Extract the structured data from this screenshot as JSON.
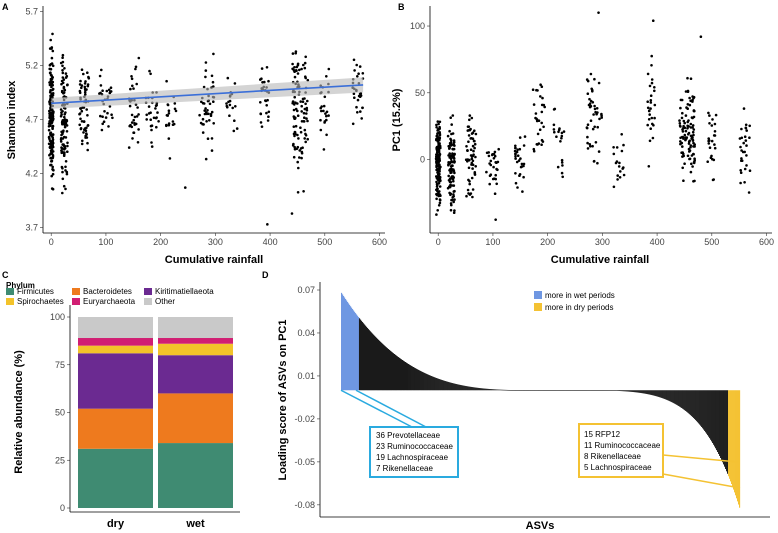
{
  "chart_data": [
    {
      "id": "A",
      "type": "scatter",
      "panel_label": "A",
      "xlabel": "Cumulative rainfall",
      "ylabel": "Shannon index",
      "xlim": [
        -15,
        610
      ],
      "ylim": [
        3.65,
        5.75
      ],
      "xticks": [
        0,
        100,
        200,
        300,
        400,
        500,
        600
      ],
      "yticks": [
        3.7,
        4.2,
        4.7,
        5.2,
        5.7
      ],
      "ytick_labels": [
        "3.7",
        "4.2",
        "4.7",
        "5.2",
        "5.7"
      ],
      "trend": {
        "x": [
          0,
          570
        ],
        "y": [
          4.85,
          5.02
        ],
        "ci_halfwidth": [
          0.05,
          0.07
        ],
        "color": "#3b6fd8"
      },
      "clusters": [
        {
          "x": 0,
          "spread": 4,
          "n": 170,
          "ymin": 3.82,
          "ymax": 5.62
        },
        {
          "x": 24,
          "spread": 6,
          "n": 110,
          "ymin": 3.85,
          "ymax": 5.55
        },
        {
          "x": 60,
          "spread": 9,
          "n": 60,
          "ymin": 4.2,
          "ymax": 5.45
        },
        {
          "x": 100,
          "spread": 12,
          "n": 30,
          "ymin": 4.3,
          "ymax": 5.35
        },
        {
          "x": 150,
          "spread": 10,
          "n": 35,
          "ymin": 4.2,
          "ymax": 5.35
        },
        {
          "x": 185,
          "spread": 12,
          "n": 30,
          "ymin": 4.25,
          "ymax": 5.35
        },
        {
          "x": 220,
          "spread": 10,
          "n": 20,
          "ymin": 4.3,
          "ymax": 5.3
        },
        {
          "x": 285,
          "spread": 14,
          "n": 45,
          "ymin": 4.15,
          "ymax": 5.45
        },
        {
          "x": 330,
          "spread": 10,
          "n": 18,
          "ymin": 4.4,
          "ymax": 5.2
        },
        {
          "x": 390,
          "spread": 8,
          "n": 30,
          "ymin": 4.5,
          "ymax": 5.35
        },
        {
          "x": 455,
          "spread": 14,
          "n": 110,
          "ymin": 3.9,
          "ymax": 5.65
        },
        {
          "x": 500,
          "spread": 8,
          "n": 25,
          "ymin": 4.3,
          "ymax": 5.45
        },
        {
          "x": 560,
          "spread": 10,
          "n": 30,
          "ymin": 4.4,
          "ymax": 5.5
        }
      ],
      "extra_points": [
        [
          395,
          3.73
        ],
        [
          245,
          4.07
        ],
        [
          440,
          3.83
        ]
      ]
    },
    {
      "id": "B",
      "type": "scatter",
      "panel_label": "B",
      "xlabel": "Cumulative rainfall",
      "ylabel": "PC1 (15.2%)",
      "xlim": [
        -15,
        610
      ],
      "ylim": [
        -55,
        115
      ],
      "xticks": [
        0,
        100,
        200,
        300,
        400,
        500,
        600
      ],
      "yticks": [
        0,
        50,
        100
      ],
      "ytick_labels": [
        "0",
        "50",
        "100"
      ],
      "clusters": [
        {
          "x": 0,
          "spread": 4,
          "n": 160,
          "ymin": -48,
          "ymax": 45
        },
        {
          "x": 24,
          "spread": 6,
          "n": 110,
          "ymin": -48,
          "ymax": 40
        },
        {
          "x": 60,
          "spread": 9,
          "n": 60,
          "ymin": -45,
          "ymax": 55
        },
        {
          "x": 100,
          "spread": 12,
          "n": 30,
          "ymin": -40,
          "ymax": 30
        },
        {
          "x": 150,
          "spread": 10,
          "n": 30,
          "ymin": -35,
          "ymax": 30
        },
        {
          "x": 185,
          "spread": 12,
          "n": 30,
          "ymin": -35,
          "ymax": 75
        },
        {
          "x": 220,
          "spread": 10,
          "n": 20,
          "ymin": -35,
          "ymax": 55
        },
        {
          "x": 285,
          "spread": 14,
          "n": 45,
          "ymin": -25,
          "ymax": 90
        },
        {
          "x": 330,
          "spread": 10,
          "n": 18,
          "ymin": -30,
          "ymax": 30
        },
        {
          "x": 390,
          "spread": 8,
          "n": 28,
          "ymin": -20,
          "ymax": 90
        },
        {
          "x": 455,
          "spread": 14,
          "n": 110,
          "ymin": -35,
          "ymax": 80
        },
        {
          "x": 500,
          "spread": 8,
          "n": 25,
          "ymin": -25,
          "ymax": 45
        },
        {
          "x": 560,
          "spread": 10,
          "n": 30,
          "ymin": -35,
          "ymax": 45
        }
      ],
      "extra_points": [
        [
          293,
          110
        ],
        [
          393,
          104
        ],
        [
          480,
          92
        ],
        [
          105,
          -45
        ]
      ]
    },
    {
      "id": "C",
      "type": "bar",
      "stacked": true,
      "panel_label": "C",
      "legend_title": "Phylum",
      "ylabel": "Relative abundance (%)",
      "categories": [
        "dry",
        "wet"
      ],
      "ylim": [
        0,
        100
      ],
      "yticks": [
        0,
        25,
        50,
        75,
        100
      ],
      "series": [
        {
          "name": "Firmicutes",
          "color": "#3f8b72",
          "values": [
            31,
            34
          ]
        },
        {
          "name": "Bacteroidetes",
          "color": "#ee7a1e",
          "values": [
            21,
            26
          ]
        },
        {
          "name": "Kiritimatiellaeota",
          "color": "#6b2a91",
          "values": [
            29,
            20
          ]
        },
        {
          "name": "Spirochaetes",
          "color": "#f3c32a",
          "values": [
            4,
            6
          ]
        },
        {
          "name": "Euryarchaeota",
          "color": "#d11e73",
          "values": [
            4,
            3
          ]
        },
        {
          "name": "Other",
          "color": "#c9c9c9",
          "values": [
            11,
            11
          ]
        }
      ]
    },
    {
      "id": "D",
      "type": "bar",
      "panel_label": "D",
      "xlabel": "ASVs",
      "ylabel": "Loading score of ASVs on PC1",
      "ylim": [
        -0.085,
        0.07
      ],
      "yticks": [
        -0.08,
        -0.05,
        -0.02,
        0.01,
        0.04,
        0.07
      ],
      "ytick_labels": [
        "-0.08",
        "-0.05",
        "-0.02",
        "0.01",
        "0.04",
        "0.07"
      ],
      "baseline": 0.0,
      "n_asvs": 400,
      "wet_count": 18,
      "dry_count": 12,
      "max_loading": 0.068,
      "min_loading": -0.082,
      "legend": [
        {
          "label": "more in wet periods",
          "color": "#6f97e2"
        },
        {
          "label": "more in dry periods",
          "color": "#f4c233"
        }
      ],
      "wet_box": {
        "color": "#2aaadf",
        "lines": [
          "36 Prevotellaceae",
          "23 Ruminococcaceae",
          "19 Lachnospiraceae",
          "7 Rikenellaceae"
        ]
      },
      "dry_box": {
        "color": "#f4c233",
        "lines": [
          "15 RFP12",
          "11 Ruminococcaceae",
          "8 Rikenellaceae",
          "5 Lachnospiraceae"
        ]
      }
    }
  ]
}
